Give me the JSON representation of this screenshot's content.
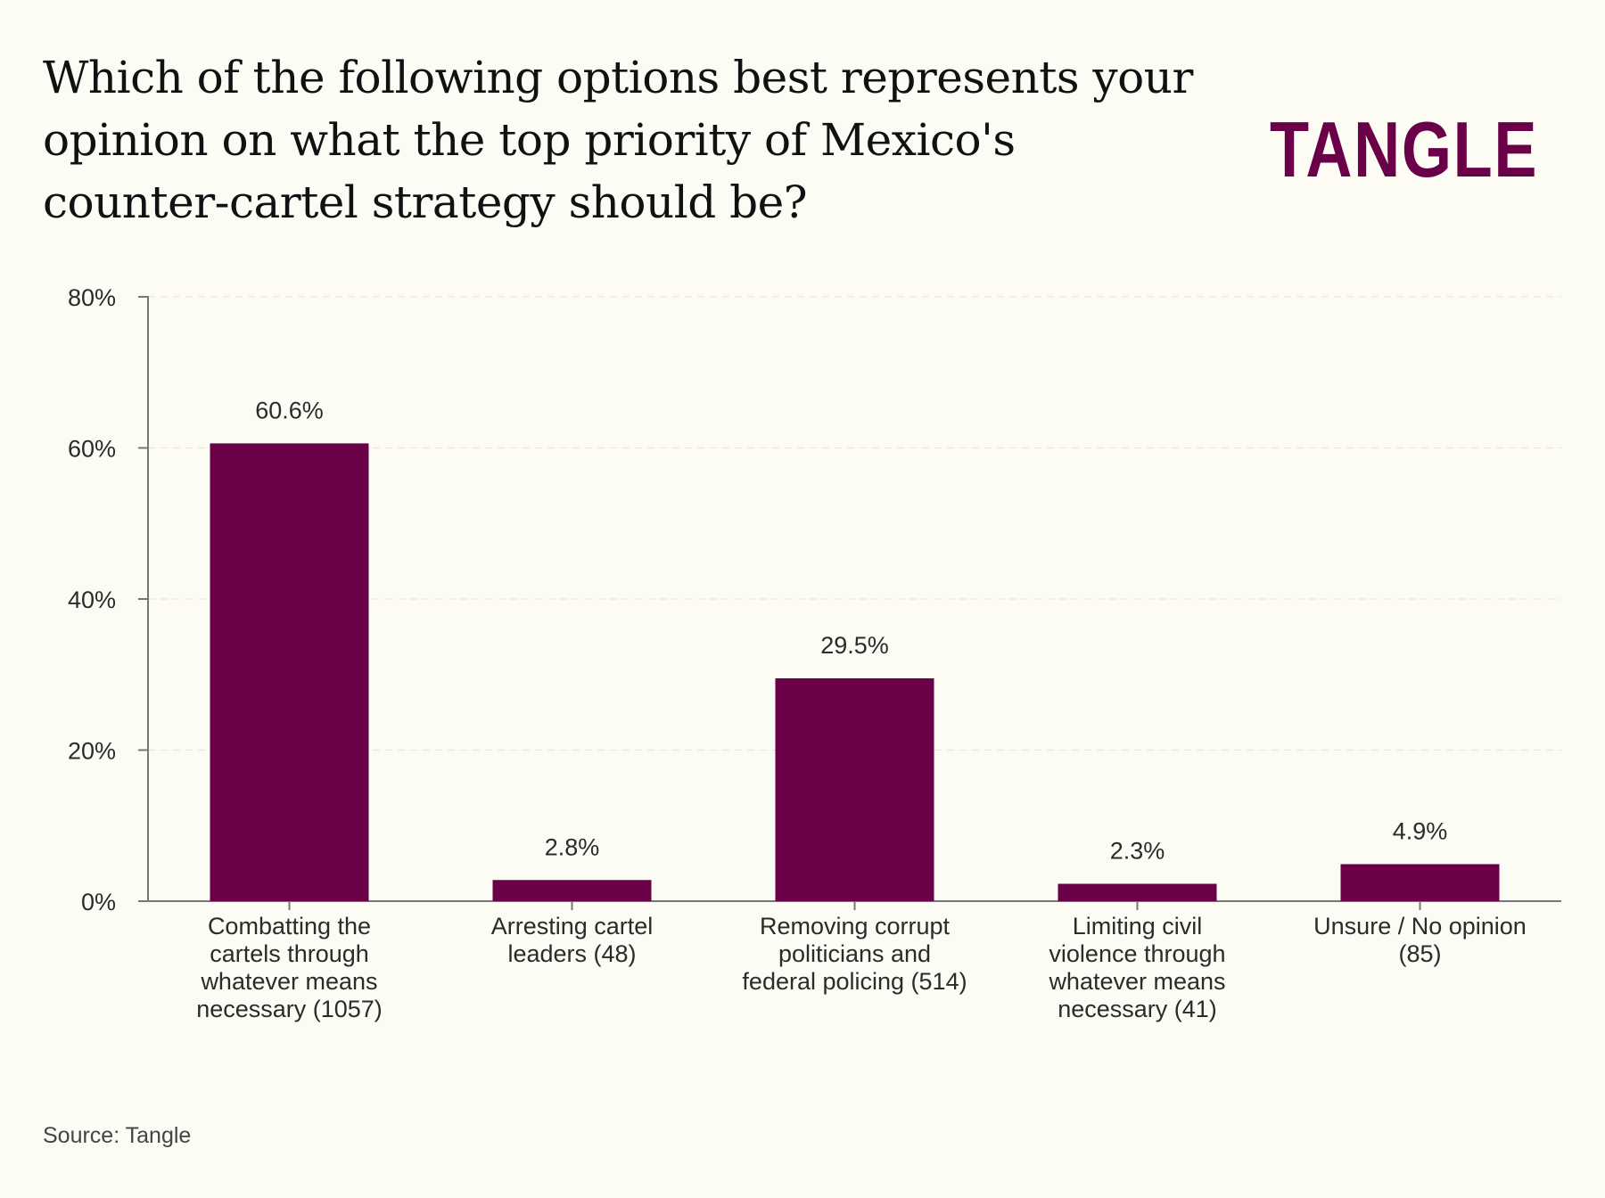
{
  "title": "Which of the following options best represents your opinion on what the top priority of Mexico's counter-cartel strategy should be?",
  "logo_text": "TANGLE",
  "source": "Source: Tangle",
  "colors": {
    "bar": "#6a0048",
    "background": "#fcfbf4",
    "axis": "#777777",
    "grid": "#e6e3da"
  },
  "chart_data": {
    "type": "bar",
    "title": "Which of the following options best represents your opinion on what the top priority of Mexico's counter-cartel strategy should be?",
    "xlabel": "",
    "ylabel": "",
    "ylim": [
      0,
      80
    ],
    "yticks": [
      0,
      20,
      40,
      60,
      80
    ],
    "ytick_labels": [
      "0%",
      "20%",
      "40%",
      "60%",
      "80%"
    ],
    "grid": true,
    "categories": [
      [
        "Combatting the",
        "cartels through",
        "whatever means",
        "necessary (1057)"
      ],
      [
        "Arresting cartel",
        "leaders (48)"
      ],
      [
        "Removing corrupt",
        "politicians and",
        "federal policing (514)"
      ],
      [
        "Limiting civil",
        "violence through",
        "whatever means",
        "necessary (41)"
      ],
      [
        "Unsure / No opinion",
        "(85)"
      ]
    ],
    "values": [
      60.6,
      2.8,
      29.5,
      2.3,
      4.9
    ],
    "data_labels": [
      "60.6%",
      "2.8%",
      "29.5%",
      "2.3%",
      "4.9%"
    ]
  }
}
